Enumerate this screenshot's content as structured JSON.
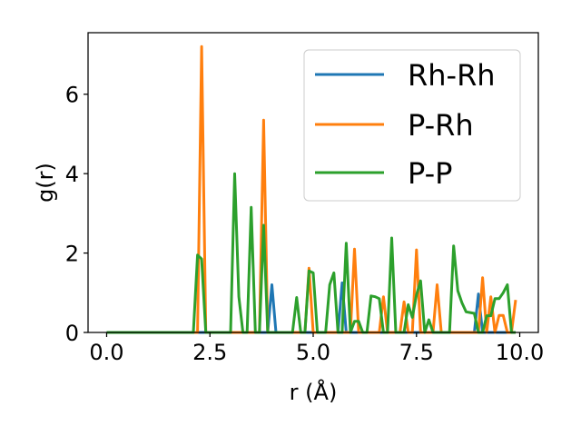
{
  "chart_data": {
    "type": "line",
    "xlabel": "r (Å)",
    "ylabel": "g(r)",
    "xlim": [
      -0.45,
      10.45
    ],
    "ylim": [
      0,
      7.55
    ],
    "xticks": [
      0.0,
      2.5,
      5.0,
      7.5,
      10.0
    ],
    "xtick_labels": [
      "0.0",
      "2.5",
      "5.0",
      "7.5",
      "10.0"
    ],
    "yticks": [
      0,
      2,
      4,
      6
    ],
    "ytick_labels": [
      "0",
      "2",
      "4",
      "6"
    ],
    "grid": false,
    "legend_position": "top-right",
    "series": [
      {
        "name": "Rh-Rh",
        "color": "#1f77b4",
        "x": [
          0.0,
          3.9,
          4.0,
          4.1,
          5.6,
          5.7,
          5.8,
          8.9,
          9.0,
          9.1,
          9.9
        ],
        "y": [
          0.0,
          0.0,
          1.2,
          0.0,
          0.0,
          1.25,
          0.0,
          0.0,
          0.97,
          0.0,
          0.0
        ]
      },
      {
        "name": "P-Rh",
        "color": "#ff7f0e",
        "x": [
          0.0,
          2.2,
          2.3,
          2.4,
          3.7,
          3.8,
          3.9,
          4.8,
          4.9,
          5.0,
          5.1,
          5.9,
          6.0,
          6.1,
          6.2,
          6.6,
          6.7,
          6.8,
          6.9,
          7.0,
          7.1,
          7.2,
          7.3,
          7.4,
          7.5,
          7.6,
          7.7,
          7.8,
          7.9,
          8.0,
          8.1,
          8.2,
          8.3,
          8.4,
          8.5,
          8.6,
          8.7,
          8.8,
          8.9,
          9.0,
          9.1,
          9.2,
          9.3,
          9.4,
          9.5,
          9.6,
          9.7,
          9.8,
          9.9
        ],
        "y": [
          0.0,
          0.0,
          7.2,
          0.0,
          0.0,
          5.35,
          0.0,
          0.0,
          1.62,
          0.0,
          0.0,
          0.0,
          2.1,
          0.0,
          0.0,
          0.0,
          0.9,
          0.0,
          0.0,
          0.0,
          0.0,
          0.77,
          0.0,
          0.0,
          2.08,
          0.0,
          0.0,
          0.0,
          0.0,
          1.2,
          0.0,
          0.0,
          0.0,
          0.0,
          0.0,
          0.0,
          0.0,
          0.0,
          0.0,
          0.0,
          1.38,
          0.0,
          0.9,
          0.0,
          0.43,
          0.43,
          0.0,
          0.0,
          0.82
        ]
      },
      {
        "name": "P-P",
        "color": "#2ca02c",
        "x": [
          0.0,
          2.1,
          2.2,
          2.3,
          2.4,
          3.0,
          3.1,
          3.2,
          3.3,
          3.4,
          3.5,
          3.6,
          3.7,
          3.8,
          3.9,
          4.5,
          4.6,
          4.7,
          4.8,
          4.9,
          5.0,
          5.1,
          5.2,
          5.3,
          5.4,
          5.5,
          5.6,
          5.7,
          5.8,
          5.9,
          6.0,
          6.1,
          6.2,
          6.3,
          6.4,
          6.5,
          6.6,
          6.7,
          6.8,
          6.9,
          7.0,
          7.1,
          7.2,
          7.3,
          7.4,
          7.5,
          7.6,
          7.7,
          7.8,
          7.9,
          8.0,
          8.1,
          8.2,
          8.3,
          8.4,
          8.5,
          8.6,
          8.7,
          8.8,
          8.9,
          9.0,
          9.1,
          9.2,
          9.3,
          9.4,
          9.5,
          9.6,
          9.7,
          9.8,
          9.9
        ],
        "y": [
          0.0,
          0.0,
          1.95,
          1.85,
          0.0,
          0.0,
          4.0,
          0.9,
          0.0,
          0.0,
          3.15,
          0.0,
          0.0,
          2.7,
          0.0,
          0.0,
          0.88,
          0.0,
          0.0,
          1.55,
          1.5,
          0.0,
          0.0,
          0.0,
          1.2,
          1.5,
          0.0,
          0.0,
          2.25,
          0.0,
          0.28,
          0.28,
          0.0,
          0.0,
          0.92,
          0.9,
          0.85,
          0.0,
          0.0,
          2.38,
          0.0,
          0.0,
          0.0,
          0.7,
          0.38,
          0.95,
          1.3,
          0.0,
          0.32,
          0.0,
          0.0,
          0.0,
          0.0,
          0.0,
          2.18,
          1.05,
          0.75,
          0.52,
          0.5,
          0.48,
          0.0,
          0.0,
          0.42,
          0.42,
          0.85,
          0.85,
          1.0,
          1.2,
          0.0,
          0.0
        ]
      }
    ]
  }
}
